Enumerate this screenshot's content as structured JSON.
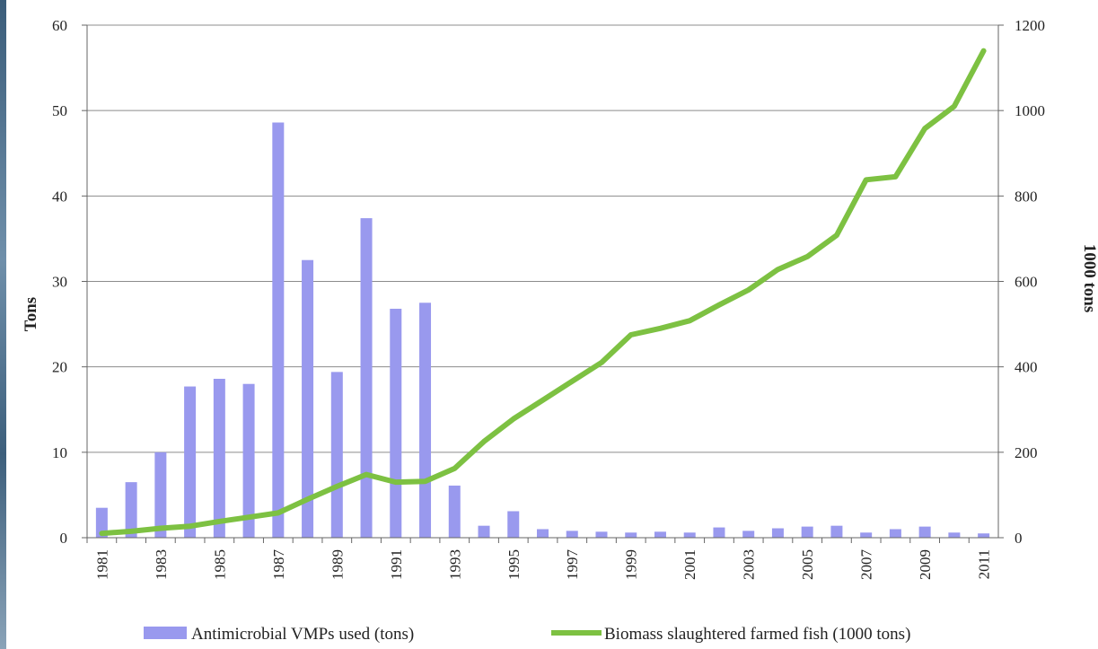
{
  "chart_data": {
    "type": "bar+line",
    "categories": [
      "1981",
      "1982",
      "1983",
      "1984",
      "1985",
      "1986",
      "1987",
      "1988",
      "1989",
      "1990",
      "1991",
      "1992",
      "1993",
      "1994",
      "1995",
      "1996",
      "1997",
      "1998",
      "1999",
      "2000",
      "2001",
      "2002",
      "2003",
      "2004",
      "2005",
      "2006",
      "2007",
      "2008",
      "2009",
      "2010",
      "2011"
    ],
    "x_tick_labels": [
      "1981",
      "1983",
      "1985",
      "1987",
      "1989",
      "1991",
      "1993",
      "1995",
      "1997",
      "1999",
      "2001",
      "2003",
      "2005",
      "2007",
      "2009",
      "2011"
    ],
    "series": [
      {
        "name": "Antimicrobial VMPs used (tons)",
        "type": "bar",
        "axis": "left",
        "color": "#9999ee",
        "values": [
          3.5,
          6.5,
          10,
          17.7,
          18.6,
          18.0,
          48.6,
          32.5,
          19.4,
          37.4,
          26.8,
          27.5,
          6.1,
          1.4,
          3.1,
          1.0,
          0.8,
          0.7,
          0.6,
          0.7,
          0.6,
          1.2,
          0.8,
          1.1,
          1.3,
          1.4,
          0.6,
          1.0,
          1.3,
          0.6,
          0.5
        ]
      },
      {
        "name": "Biomass slaughtered farmed fish (1000 tons)",
        "type": "line",
        "axis": "right",
        "color": "#7dc142",
        "values": [
          10,
          15,
          22,
          27,
          38,
          48,
          58,
          90,
          120,
          148,
          130,
          132,
          162,
          225,
          278,
          322,
          366,
          410,
          475,
          490,
          508,
          545,
          580,
          628,
          658,
          708,
          838,
          845,
          958,
          1010,
          1140
        ]
      }
    ],
    "y_left": {
      "label": "Tons",
      "ylim": [
        0,
        60
      ],
      "ticks": [
        "0",
        "10",
        "20",
        "30",
        "40",
        "50",
        "60"
      ]
    },
    "y_right": {
      "label": "1000 tons",
      "ylim": [
        0,
        1200
      ],
      "ticks": [
        "0",
        "200",
        "400",
        "600",
        "800",
        "1000",
        "1200"
      ]
    },
    "grid": true,
    "legend": "bottom"
  }
}
